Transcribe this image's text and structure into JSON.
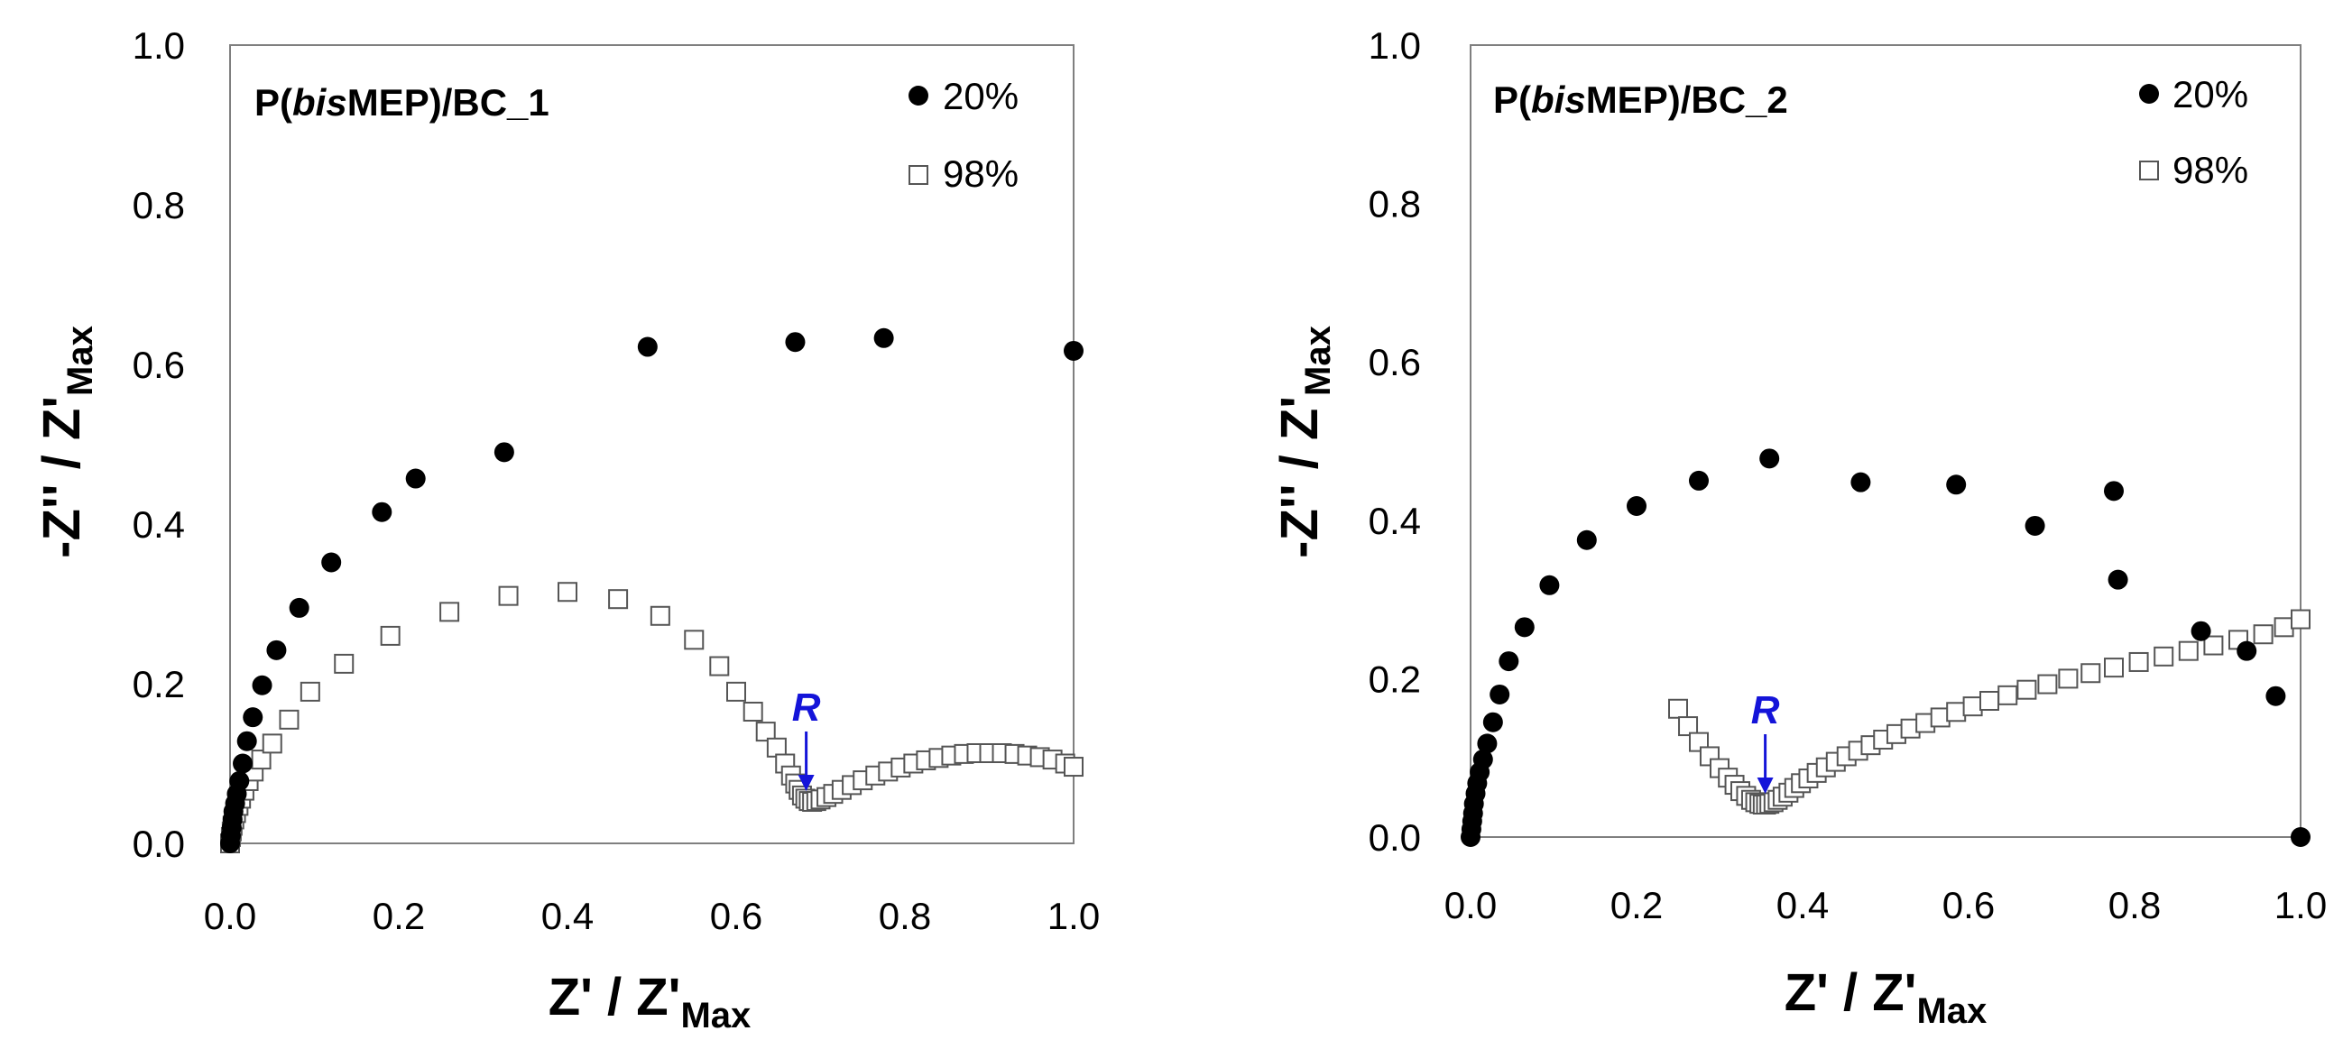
{
  "chart_data": [
    {
      "type": "scatter",
      "title": "P(bisMEP)/BC_1",
      "title_parts": [
        "P(",
        "bis",
        "MEP)/BC_1"
      ],
      "xlabel": "Z' / Z'",
      "xlabel_sub": "Max",
      "ylabel": "-Z'' / Z'",
      "ylabel_sub": "Max",
      "xlim": [
        0,
        1.0
      ],
      "ylim": [
        0,
        1.0
      ],
      "xticks": [
        "0.0",
        "0.2",
        "0.4",
        "0.6",
        "0.8",
        "1.0"
      ],
      "yticks": [
        "0.0",
        "0.2",
        "0.4",
        "0.6",
        "0.8",
        "1.0"
      ],
      "legend_position": "top-right",
      "series": [
        {
          "name": "20%",
          "marker": "filled-circle",
          "x": [
            0.0,
            0.001,
            0.002,
            0.003,
            0.004,
            0.006,
            0.008,
            0.011,
            0.015,
            0.02,
            0.027,
            0.038,
            0.055,
            0.082,
            0.12,
            0.18,
            0.22,
            0.325,
            0.495,
            0.67,
            0.775,
            1.0
          ],
          "y": [
            0.0,
            0.01,
            0.02,
            0.03,
            0.04,
            0.05,
            0.062,
            0.078,
            0.1,
            0.128,
            0.158,
            0.198,
            0.242,
            0.295,
            0.352,
            0.415,
            0.457,
            0.49,
            0.622,
            0.628,
            0.633,
            0.617
          ]
        },
        {
          "name": "98%",
          "marker": "open-square",
          "x": [
            0.0,
            0.001,
            0.002,
            0.003,
            0.005,
            0.007,
            0.01,
            0.013,
            0.017,
            0.022,
            0.028,
            0.037,
            0.05,
            0.07,
            0.095,
            0.135,
            0.19,
            0.26,
            0.33,
            0.4,
            0.46,
            0.51,
            0.55,
            0.58,
            0.6,
            0.62,
            0.635,
            0.648,
            0.658,
            0.665,
            0.67,
            0.674,
            0.678,
            0.682,
            0.686,
            0.69,
            0.695,
            0.7,
            0.707,
            0.715,
            0.725,
            0.737,
            0.75,
            0.765,
            0.78,
            0.795,
            0.81,
            0.825,
            0.84,
            0.855,
            0.87,
            0.885,
            0.9,
            0.915,
            0.93,
            0.945,
            0.96,
            0.975,
            0.99,
            1.0
          ],
          "y": [
            0.0,
            0.008,
            0.015,
            0.022,
            0.03,
            0.038,
            0.047,
            0.056,
            0.066,
            0.078,
            0.09,
            0.105,
            0.125,
            0.155,
            0.19,
            0.225,
            0.26,
            0.29,
            0.31,
            0.315,
            0.306,
            0.285,
            0.255,
            0.222,
            0.19,
            0.165,
            0.14,
            0.12,
            0.1,
            0.085,
            0.075,
            0.067,
            0.06,
            0.056,
            0.053,
            0.052,
            0.053,
            0.055,
            0.058,
            0.062,
            0.067,
            0.073,
            0.079,
            0.085,
            0.09,
            0.095,
            0.1,
            0.104,
            0.107,
            0.11,
            0.112,
            0.113,
            0.113,
            0.113,
            0.112,
            0.11,
            0.108,
            0.105,
            0.1,
            0.096
          ]
        }
      ],
      "annotation": {
        "text": "R",
        "color": "#1414d9",
        "x": 0.683,
        "y": 0.052
      }
    },
    {
      "type": "scatter",
      "title": "P(bisMEP)/BC_2",
      "title_parts": [
        "P(",
        "bis",
        "MEP)/BC_2"
      ],
      "xlabel": "Z' / Z'",
      "xlabel_sub": "Max",
      "ylabel": "-Z'' / Z'",
      "ylabel_sub": "Max",
      "xlim": [
        0,
        1.0
      ],
      "ylim": [
        0,
        1.0
      ],
      "xticks": [
        "0.0",
        "0.2",
        "0.4",
        "0.6",
        "0.8",
        "1.0"
      ],
      "yticks": [
        "0.0",
        "0.2",
        "0.4",
        "0.6",
        "0.8",
        "1.0"
      ],
      "legend_position": "top-right",
      "series": [
        {
          "name": "20%",
          "marker": "filled-circle",
          "x": [
            0.0,
            0.001,
            0.002,
            0.003,
            0.004,
            0.006,
            0.008,
            0.011,
            0.015,
            0.02,
            0.027,
            0.035,
            0.046,
            0.065,
            0.095,
            0.14,
            0.2,
            0.275,
            0.36,
            0.47,
            0.585,
            0.68,
            0.775,
            0.78,
            0.88,
            0.935,
            0.97,
            1.0
          ],
          "y": [
            0.0,
            0.01,
            0.02,
            0.03,
            0.042,
            0.055,
            0.068,
            0.082,
            0.098,
            0.118,
            0.145,
            0.18,
            0.222,
            0.265,
            0.318,
            0.375,
            0.418,
            0.45,
            0.478,
            0.448,
            0.445,
            0.393,
            0.437,
            0.325,
            0.26,
            0.235,
            0.178,
            0.0
          ]
        },
        {
          "name": "98%",
          "marker": "open-square",
          "x": [
            0.25,
            0.262,
            0.275,
            0.288,
            0.3,
            0.31,
            0.318,
            0.325,
            0.332,
            0.338,
            0.343,
            0.348,
            0.352,
            0.356,
            0.36,
            0.365,
            0.37,
            0.376,
            0.383,
            0.39,
            0.398,
            0.407,
            0.417,
            0.428,
            0.44,
            0.453,
            0.467,
            0.482,
            0.497,
            0.513,
            0.53,
            0.548,
            0.566,
            0.585,
            0.605,
            0.625,
            0.647,
            0.67,
            0.695,
            0.72,
            0.747,
            0.775,
            0.805,
            0.835,
            0.865,
            0.895,
            0.925,
            0.955,
            0.98,
            1.0
          ],
          "y": [
            0.162,
            0.14,
            0.12,
            0.102,
            0.087,
            0.075,
            0.066,
            0.058,
            0.052,
            0.047,
            0.044,
            0.042,
            0.041,
            0.041,
            0.042,
            0.044,
            0.047,
            0.051,
            0.056,
            0.062,
            0.068,
            0.074,
            0.081,
            0.088,
            0.095,
            0.102,
            0.109,
            0.116,
            0.123,
            0.13,
            0.137,
            0.144,
            0.151,
            0.158,
            0.165,
            0.172,
            0.179,
            0.186,
            0.193,
            0.2,
            0.207,
            0.214,
            0.221,
            0.228,
            0.235,
            0.242,
            0.249,
            0.256,
            0.265,
            0.275
          ]
        }
      ],
      "annotation": {
        "text": "R",
        "color": "#1414d9",
        "x": 0.355,
        "y": 0.041
      }
    }
  ]
}
